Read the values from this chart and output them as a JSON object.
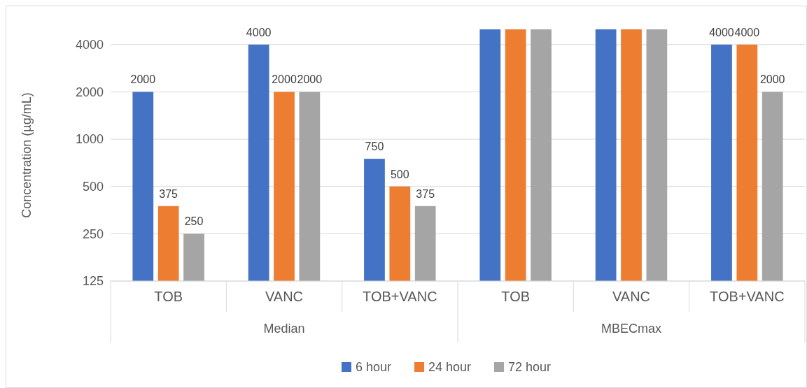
{
  "chart_data": {
    "type": "bar",
    "ylabel": "Concentration (µg/mL)",
    "log": true,
    "grid": "y",
    "legend": "bottom",
    "categories": [
      "TOB",
      "VANC",
      "TOB+VANC",
      "TOB",
      "VANC",
      "TOB+VANC"
    ],
    "annotations": [
      "Median",
      "MBECmax"
    ],
    "ylim": [
      125,
      5000
    ],
    "yticks": [
      125,
      250,
      500,
      1000,
      2000,
      4000
    ],
    "series": [
      {
        "name": "6 hour",
        "color": "#4472c4",
        "values": [
          2000,
          4000,
          750,
          5000,
          5000,
          4000
        ],
        "value_labels": [
          "2000",
          "4000",
          "750",
          null,
          null,
          "4000"
        ]
      },
      {
        "name": "24 hour",
        "color": "#ed7d31",
        "values": [
          375,
          2000,
          500,
          5000,
          5000,
          4000
        ],
        "value_labels": [
          "375",
          "2000",
          "500",
          null,
          null,
          "4000"
        ]
      },
      {
        "name": "72 hour",
        "color": "#a5a5a5",
        "values": [
          250,
          2000,
          375,
          5000,
          5000,
          2000
        ],
        "value_labels": [
          "250",
          "2000",
          "375",
          null,
          null,
          "2000"
        ]
      }
    ]
  }
}
